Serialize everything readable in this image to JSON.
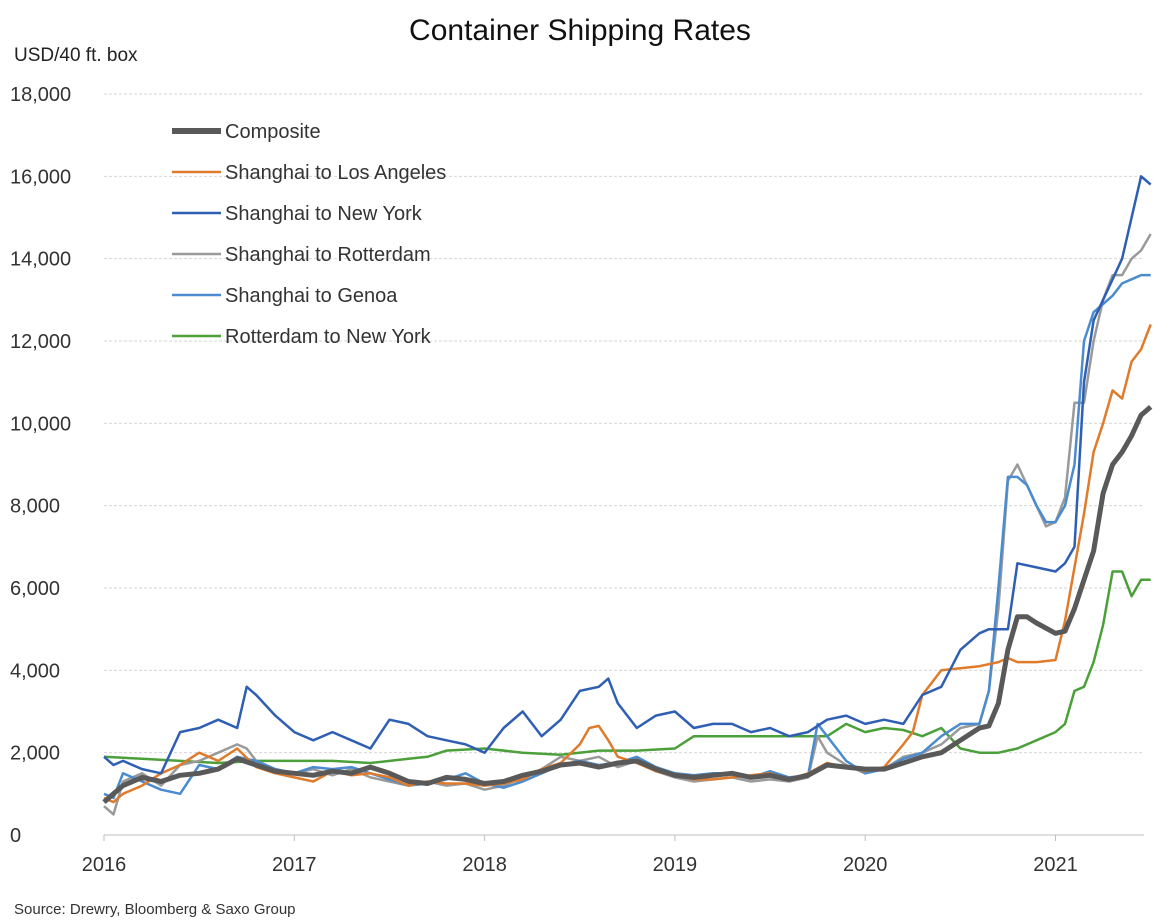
{
  "chart_data": {
    "type": "line",
    "title": "Container Shipping Rates",
    "ylabel": "USD/40 ft. box",
    "xlabel": "",
    "source": "Source: Drewry, Bloomberg & Saxo Group",
    "xlim": [
      2016.0,
      2021.52
    ],
    "ylim": [
      0,
      18000
    ],
    "x_ticks": [
      "2016",
      "2017",
      "2018",
      "2019",
      "2020",
      "2021"
    ],
    "y_ticks": [
      "0",
      "2,000",
      "4,000",
      "6,000",
      "8,000",
      "10,000",
      "12,000",
      "14,000",
      "16,000",
      "18,000"
    ],
    "grid": "horizontal",
    "legend_position": "top-left",
    "series": [
      {
        "name": "Composite",
        "color": "#595959",
        "x": [
          2016.0,
          2016.05,
          2016.1,
          2016.2,
          2016.3,
          2016.4,
          2016.5,
          2016.6,
          2016.7,
          2016.8,
          2016.9,
          2017.0,
          2017.1,
          2017.2,
          2017.3,
          2017.4,
          2017.5,
          2017.6,
          2017.7,
          2017.8,
          2017.9,
          2018.0,
          2018.1,
          2018.2,
          2018.3,
          2018.4,
          2018.5,
          2018.6,
          2018.7,
          2018.8,
          2018.9,
          2019.0,
          2019.1,
          2019.2,
          2019.3,
          2019.4,
          2019.5,
          2019.6,
          2019.7,
          2019.8,
          2019.9,
          2020.0,
          2020.1,
          2020.2,
          2020.3,
          2020.4,
          2020.5,
          2020.6,
          2020.65,
          2020.7,
          2020.75,
          2020.8,
          2020.85,
          2020.9,
          2021.0,
          2021.05,
          2021.1,
          2021.15,
          2021.2,
          2021.25,
          2021.3,
          2021.35,
          2021.4,
          2021.45,
          2021.5
        ],
        "values": [
          800,
          1000,
          1200,
          1400,
          1300,
          1450,
          1500,
          1600,
          1850,
          1700,
          1550,
          1500,
          1450,
          1550,
          1500,
          1650,
          1500,
          1300,
          1250,
          1400,
          1350,
          1250,
          1300,
          1450,
          1550,
          1700,
          1750,
          1650,
          1750,
          1800,
          1600,
          1450,
          1400,
          1450,
          1500,
          1400,
          1450,
          1350,
          1450,
          1700,
          1650,
          1600,
          1600,
          1750,
          1900,
          2000,
          2300,
          2600,
          2650,
          3200,
          4500,
          5300,
          5300,
          5150,
          4900,
          4950,
          5500,
          6200,
          6900,
          8300,
          9000,
          9300,
          9700,
          10200,
          10400
        ]
      },
      {
        "name": "Shanghai to Los Angeles",
        "color": "#e07b2c",
        "x": [
          2016.0,
          2016.05,
          2016.1,
          2016.2,
          2016.3,
          2016.4,
          2016.5,
          2016.6,
          2016.7,
          2016.8,
          2016.9,
          2017.0,
          2017.1,
          2017.2,
          2017.3,
          2017.4,
          2017.5,
          2017.6,
          2017.7,
          2017.8,
          2017.9,
          2018.0,
          2018.1,
          2018.2,
          2018.3,
          2018.4,
          2018.5,
          2018.55,
          2018.6,
          2018.65,
          2018.7,
          2018.8,
          2018.9,
          2019.0,
          2019.1,
          2019.2,
          2019.3,
          2019.4,
          2019.5,
          2019.6,
          2019.7,
          2019.8,
          2019.9,
          2020.0,
          2020.1,
          2020.2,
          2020.25,
          2020.3,
          2020.35,
          2020.4,
          2020.5,
          2020.6,
          2020.7,
          2020.75,
          2020.8,
          2020.9,
          2021.0,
          2021.05,
          2021.1,
          2021.15,
          2021.2,
          2021.25,
          2021.3,
          2021.35,
          2021.4,
          2021.45,
          2021.5
        ],
        "values": [
          900,
          800,
          1000,
          1200,
          1500,
          1700,
          2000,
          1800,
          2100,
          1650,
          1500,
          1400,
          1300,
          1550,
          1450,
          1500,
          1400,
          1200,
          1300,
          1250,
          1250,
          1200,
          1250,
          1350,
          1600,
          1750,
          2200,
          2600,
          2650,
          2300,
          1900,
          1750,
          1550,
          1450,
          1350,
          1350,
          1400,
          1450,
          1500,
          1350,
          1500,
          1750,
          1650,
          1550,
          1650,
          2200,
          2500,
          3400,
          3700,
          4000,
          4050,
          4100,
          4200,
          4300,
          4200,
          4200,
          4250,
          5200,
          6500,
          7800,
          9300,
          10000,
          10800,
          10600,
          11500,
          11800,
          12400
        ]
      },
      {
        "name": "Shanghai to New York",
        "color": "#2f5fb3",
        "x": [
          2016.0,
          2016.05,
          2016.1,
          2016.2,
          2016.3,
          2016.4,
          2016.5,
          2016.6,
          2016.7,
          2016.75,
          2016.8,
          2016.9,
          2017.0,
          2017.1,
          2017.2,
          2017.3,
          2017.4,
          2017.5,
          2017.6,
          2017.7,
          2017.8,
          2017.9,
          2018.0,
          2018.1,
          2018.2,
          2018.3,
          2018.4,
          2018.5,
          2018.6,
          2018.65,
          2018.7,
          2018.8,
          2018.9,
          2019.0,
          2019.1,
          2019.2,
          2019.3,
          2019.4,
          2019.5,
          2019.6,
          2019.7,
          2019.8,
          2019.9,
          2020.0,
          2020.1,
          2020.2,
          2020.3,
          2020.4,
          2020.5,
          2020.6,
          2020.65,
          2020.7,
          2020.75,
          2020.8,
          2020.9,
          2021.0,
          2021.05,
          2021.1,
          2021.15,
          2021.2,
          2021.25,
          2021.3,
          2021.35,
          2021.4,
          2021.45,
          2021.5
        ],
        "values": [
          1900,
          1700,
          1800,
          1600,
          1500,
          2500,
          2600,
          2800,
          2600,
          3600,
          3400,
          2900,
          2500,
          2300,
          2500,
          2300,
          2100,
          2800,
          2700,
          2400,
          2300,
          2200,
          2000,
          2600,
          3000,
          2400,
          2800,
          3500,
          3600,
          3800,
          3200,
          2600,
          2900,
          3000,
          2600,
          2700,
          2700,
          2500,
          2600,
          2400,
          2500,
          2800,
          2900,
          2700,
          2800,
          2700,
          3400,
          3600,
          4500,
          4900,
          5000,
          5000,
          5000,
          6600,
          6500,
          6400,
          6600,
          7000,
          11000,
          12500,
          13000,
          13500,
          14000,
          15000,
          16000,
          15800
        ]
      },
      {
        "name": "Shanghai to Rotterdam",
        "color": "#9a9a9a",
        "x": [
          2016.0,
          2016.05,
          2016.1,
          2016.2,
          2016.3,
          2016.4,
          2016.5,
          2016.6,
          2016.7,
          2016.75,
          2016.8,
          2016.9,
          2017.0,
          2017.1,
          2017.2,
          2017.3,
          2017.4,
          2017.5,
          2017.6,
          2017.7,
          2017.8,
          2017.9,
          2018.0,
          2018.1,
          2018.2,
          2018.3,
          2018.4,
          2018.5,
          2018.6,
          2018.7,
          2018.8,
          2018.9,
          2019.0,
          2019.1,
          2019.2,
          2019.3,
          2019.4,
          2019.5,
          2019.6,
          2019.7,
          2019.75,
          2019.8,
          2019.9,
          2020.0,
          2020.1,
          2020.2,
          2020.3,
          2020.4,
          2020.5,
          2020.6,
          2020.65,
          2020.7,
          2020.75,
          2020.8,
          2020.85,
          2020.9,
          2020.95,
          2021.0,
          2021.05,
          2021.1,
          2021.15,
          2021.2,
          2021.25,
          2021.3,
          2021.35,
          2021.4,
          2021.45,
          2021.5
        ],
        "values": [
          700,
          500,
          1300,
          1500,
          1200,
          1700,
          1800,
          2000,
          2200,
          2100,
          1800,
          1600,
          1500,
          1600,
          1450,
          1600,
          1400,
          1300,
          1200,
          1300,
          1200,
          1250,
          1100,
          1200,
          1400,
          1600,
          1900,
          1800,
          1900,
          1650,
          1800,
          1550,
          1400,
          1300,
          1350,
          1400,
          1300,
          1350,
          1300,
          1400,
          2400,
          2000,
          1700,
          1500,
          1600,
          1900,
          2000,
          2200,
          2600,
          2700,
          3500,
          5500,
          8600,
          9000,
          8500,
          8000,
          7500,
          7600,
          8200,
          10500,
          10500,
          12000,
          13000,
          13600,
          13600,
          14000,
          14200,
          14600
        ]
      },
      {
        "name": "Shanghai to Genoa",
        "color": "#4a8ccf",
        "x": [
          2016.0,
          2016.05,
          2016.1,
          2016.2,
          2016.3,
          2016.4,
          2016.5,
          2016.6,
          2016.7,
          2016.8,
          2016.9,
          2017.0,
          2017.1,
          2017.2,
          2017.3,
          2017.4,
          2017.5,
          2017.6,
          2017.7,
          2017.8,
          2017.9,
          2018.0,
          2018.1,
          2018.2,
          2018.3,
          2018.4,
          2018.5,
          2018.6,
          2018.7,
          2018.8,
          2018.9,
          2019.0,
          2019.1,
          2019.2,
          2019.3,
          2019.4,
          2019.5,
          2019.6,
          2019.7,
          2019.75,
          2019.8,
          2019.9,
          2020.0,
          2020.1,
          2020.2,
          2020.3,
          2020.4,
          2020.5,
          2020.6,
          2020.65,
          2020.7,
          2020.75,
          2020.8,
          2020.85,
          2020.9,
          2020.95,
          2021.0,
          2021.05,
          2021.1,
          2021.15,
          2021.2,
          2021.25,
          2021.3,
          2021.35,
          2021.4,
          2021.45,
          2021.5
        ],
        "values": [
          1000,
          900,
          1500,
          1300,
          1100,
          1000,
          1700,
          1600,
          1900,
          1800,
          1600,
          1500,
          1650,
          1600,
          1650,
          1500,
          1350,
          1200,
          1250,
          1350,
          1500,
          1250,
          1150,
          1300,
          1500,
          1700,
          1800,
          1700,
          1750,
          1900,
          1650,
          1500,
          1450,
          1500,
          1500,
          1400,
          1550,
          1400,
          1450,
          2700,
          2400,
          1800,
          1500,
          1600,
          1850,
          2000,
          2400,
          2700,
          2700,
          3500,
          6000,
          8700,
          8700,
          8500,
          8000,
          7600,
          7600,
          8000,
          9000,
          12000,
          12700,
          12900,
          13100,
          13400,
          13500,
          13600,
          13600
        ]
      },
      {
        "name": "Rotterdam to New York",
        "color": "#4ba03a",
        "x": [
          2016.0,
          2016.2,
          2016.4,
          2016.6,
          2016.8,
          2017.0,
          2017.2,
          2017.4,
          2017.6,
          2017.7,
          2017.8,
          2018.0,
          2018.2,
          2018.4,
          2018.6,
          2018.8,
          2019.0,
          2019.1,
          2019.2,
          2019.4,
          2019.6,
          2019.8,
          2019.9,
          2020.0,
          2020.1,
          2020.2,
          2020.3,
          2020.4,
          2020.5,
          2020.6,
          2020.7,
          2020.8,
          2020.9,
          2021.0,
          2021.05,
          2021.1,
          2021.15,
          2021.2,
          2021.25,
          2021.3,
          2021.35,
          2021.4,
          2021.45,
          2021.5
        ],
        "values": [
          1900,
          1850,
          1800,
          1750,
          1800,
          1800,
          1800,
          1750,
          1850,
          1900,
          2050,
          2100,
          2000,
          1950,
          2050,
          2050,
          2100,
          2400,
          2400,
          2400,
          2400,
          2400,
          2700,
          2500,
          2600,
          2550,
          2400,
          2600,
          2100,
          2000,
          2000,
          2100,
          2300,
          2500,
          2700,
          3500,
          3600,
          4200,
          5100,
          6400,
          6400,
          5800,
          6200,
          6200
        ]
      }
    ]
  }
}
